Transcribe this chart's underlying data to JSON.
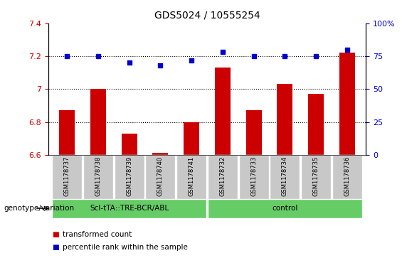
{
  "title": "GDS5024 / 10555254",
  "samples": [
    "GSM1178737",
    "GSM1178738",
    "GSM1178739",
    "GSM1178740",
    "GSM1178741",
    "GSM1178732",
    "GSM1178733",
    "GSM1178734",
    "GSM1178735",
    "GSM1178736"
  ],
  "red_values": [
    6.87,
    7.0,
    6.73,
    6.61,
    6.8,
    7.13,
    6.87,
    7.03,
    6.97,
    7.22
  ],
  "blue_values": [
    75,
    75,
    70,
    68,
    72,
    78,
    75,
    75,
    75,
    80
  ],
  "ylim_left": [
    6.6,
    7.4
  ],
  "ylim_right": [
    0,
    100
  ],
  "yticks_left": [
    6.6,
    6.8,
    7.0,
    7.2,
    7.4
  ],
  "yticks_right": [
    0,
    25,
    50,
    75,
    100
  ],
  "hlines": [
    6.8,
    7.0,
    7.2
  ],
  "group1_label": "ScI-tTA::TRE-BCR/ABL",
  "group2_label": "control",
  "group1_indices": [
    0,
    1,
    2,
    3,
    4
  ],
  "group2_indices": [
    5,
    6,
    7,
    8,
    9
  ],
  "bar_color": "#cc0000",
  "dot_color": "#0000cc",
  "legend_bar_label": "transformed count",
  "legend_dot_label": "percentile rank within the sample",
  "genotype_label": "genotype/variation",
  "tick_bg_color": "#c8c8c8",
  "green_color": "#66cc66",
  "bar_width": 0.5
}
